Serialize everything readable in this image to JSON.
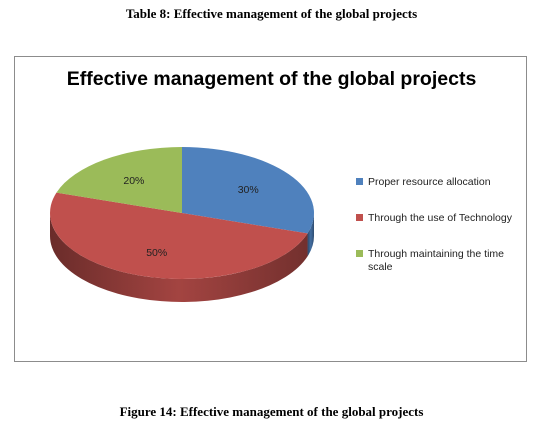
{
  "table_caption": "Table 8: Effective management  of the global projects",
  "figure_caption": "Figure 14: Effective management  of the global projects",
  "chart_data": {
    "type": "pie",
    "title": "Effective management of the global projects",
    "legend_position": "right",
    "slices": [
      {
        "label": "Proper resource allocation",
        "value": 30,
        "data_label": "30%",
        "color": "#4f81bd"
      },
      {
        "label": "Through the use of Technology",
        "value": 50,
        "data_label": "50%",
        "color": "#c0504d"
      },
      {
        "label": "Through maintaining the time scale",
        "value": 20,
        "data_label": "20%",
        "color": "#9bbb59"
      }
    ]
  }
}
